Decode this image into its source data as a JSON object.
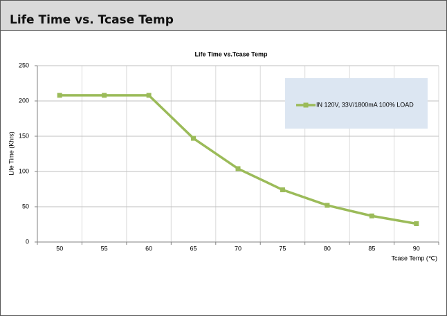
{
  "header": {
    "title": "Life Time vs. Tcase Temp"
  },
  "chart_data": {
    "type": "line",
    "title": "Life Time vs.Tcase Temp",
    "x_label": "Tcase Temp (℃)",
    "y_label": "Life Time (Khrs)",
    "categories": [
      "50",
      "55",
      "60",
      "65",
      "70",
      "75",
      "80",
      "85",
      "90"
    ],
    "series": [
      {
        "name": "IN 120V, 33V/1800mA 100% LOAD",
        "color": "#9bbb59",
        "values": [
          208,
          208,
          208,
          147,
          104,
          74,
          52,
          37,
          26
        ]
      }
    ],
    "ylim": [
      0,
      250
    ],
    "yticks": [
      0,
      50,
      100,
      150,
      200,
      250
    ],
    "grid": true,
    "legend": "upper right"
  }
}
